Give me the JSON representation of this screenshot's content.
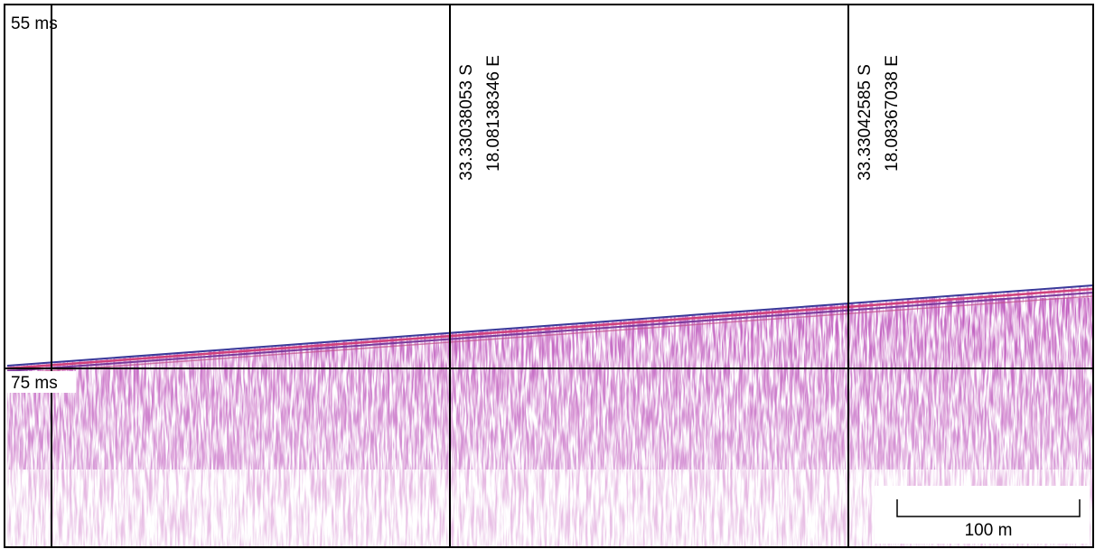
{
  "time_marks": [
    "55 ms",
    "75 ms"
  ],
  "positions": [
    {
      "lat": "33.33038053 S",
      "lon": "18.08138346 E"
    },
    {
      "lat": "33.33042585 S",
      "lon": "18.08367038 E"
    }
  ],
  "scale_bar": "100 m"
}
